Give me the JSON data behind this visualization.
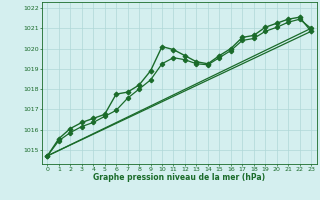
{
  "xlabel": "Graphe pression niveau de la mer (hPa)",
  "background_color": "#d4efef",
  "grid_color": "#afd8d8",
  "line_color": "#1a6b2a",
  "xlim": [
    -0.5,
    23.5
  ],
  "ylim": [
    1014.3,
    1022.3
  ],
  "yticks": [
    1015,
    1016,
    1017,
    1018,
    1019,
    1020,
    1021,
    1022
  ],
  "xticks": [
    0,
    1,
    2,
    3,
    4,
    5,
    6,
    7,
    8,
    9,
    10,
    11,
    12,
    13,
    14,
    15,
    16,
    17,
    18,
    19,
    20,
    21,
    22,
    23
  ],
  "series": [
    {
      "x": [
        0,
        1,
        2,
        3,
        4,
        5,
        6,
        7,
        8,
        9,
        10,
        11,
        12,
        13,
        14,
        15,
        16,
        17,
        18,
        19,
        20,
        21,
        22,
        23
      ],
      "y": [
        1014.7,
        1015.55,
        1016.05,
        1016.35,
        1016.55,
        1016.75,
        1017.75,
        1017.85,
        1018.2,
        1018.9,
        1020.1,
        1019.95,
        1019.65,
        1019.35,
        1019.25,
        1019.65,
        1020.0,
        1020.55,
        1020.65,
        1021.05,
        1021.25,
        1021.45,
        1021.55,
        1020.85
      ],
      "marker": "D",
      "markersize": 2.5,
      "linewidth": 1.0
    },
    {
      "x": [
        0,
        1,
        2,
        3,
        4,
        5,
        6,
        7,
        8,
        9,
        10,
        11,
        12,
        13,
        14,
        15,
        16,
        17,
        18,
        19,
        20,
        21,
        22,
        23
      ],
      "y": [
        1014.7,
        1015.45,
        1015.85,
        1016.15,
        1016.35,
        1016.65,
        1016.95,
        1017.55,
        1018.0,
        1018.45,
        1019.25,
        1019.55,
        1019.45,
        1019.25,
        1019.2,
        1019.55,
        1019.9,
        1020.4,
        1020.5,
        1020.85,
        1021.05,
        1021.3,
        1021.45,
        1021.0
      ],
      "marker": "P",
      "markersize": 3,
      "linewidth": 0.9
    },
    {
      "x": [
        0,
        23
      ],
      "y": [
        1014.7,
        1021.0
      ],
      "marker": null,
      "linewidth": 0.9
    },
    {
      "x": [
        0,
        23
      ],
      "y": [
        1014.7,
        1020.85
      ],
      "marker": null,
      "linewidth": 0.9
    }
  ]
}
